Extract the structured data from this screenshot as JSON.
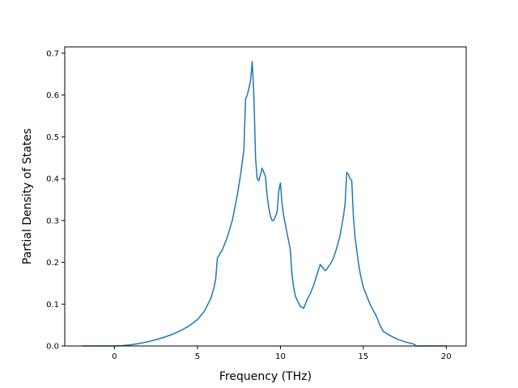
{
  "chart_data": {
    "type": "line",
    "title": "",
    "xlabel": "Frequency (THz)",
    "ylabel": "Partial Density of States",
    "xlim": [
      -3.0,
      21.2
    ],
    "ylim": [
      0.0,
      0.715
    ],
    "xticks": [
      0,
      5,
      10,
      15,
      20
    ],
    "yticks": [
      0.0,
      0.1,
      0.2,
      0.3,
      0.4,
      0.5,
      0.6,
      0.7
    ],
    "xtick_labels": [
      "0",
      "5",
      "10",
      "15",
      "20"
    ],
    "ytick_labels": [
      "0.0",
      "0.1",
      "0.2",
      "0.3",
      "0.4",
      "0.5",
      "0.6",
      "0.7"
    ],
    "grid": false,
    "legend": false,
    "series": [
      {
        "color": "#1f77b4",
        "x": [
          -1.9,
          -1.0,
          0.0,
          0.5,
          1.0,
          1.5,
          2.0,
          2.5,
          3.0,
          3.5,
          4.0,
          4.5,
          5.0,
          5.4,
          5.8,
          6.0,
          6.1,
          6.2,
          6.5,
          6.8,
          7.1,
          7.4,
          7.6,
          7.8,
          7.9,
          8.0,
          8.1,
          8.2,
          8.3,
          8.4,
          8.5,
          8.6,
          8.7,
          8.8,
          8.9,
          9.0,
          9.1,
          9.2,
          9.3,
          9.4,
          9.5,
          9.6,
          9.7,
          9.8,
          9.9,
          10.0,
          10.1,
          10.2,
          10.3,
          10.4,
          10.5,
          10.6,
          10.7,
          10.8,
          10.9,
          11.0,
          11.2,
          11.4,
          11.6,
          11.8,
          12.0,
          12.2,
          12.4,
          12.6,
          12.7,
          12.8,
          12.9,
          13.0,
          13.2,
          13.4,
          13.6,
          13.8,
          13.9,
          14.0,
          14.1,
          14.2,
          14.3,
          14.4,
          14.5,
          14.6,
          14.7,
          14.8,
          15.0,
          15.2,
          15.4,
          15.6,
          15.8,
          16.0,
          16.2,
          16.4,
          16.6,
          17.0,
          17.5,
          18.0,
          18.2,
          18.5,
          19.0,
          20.0
        ],
        "y": [
          0.0,
          0.0,
          0.0,
          0.001,
          0.003,
          0.006,
          0.01,
          0.015,
          0.021,
          0.028,
          0.037,
          0.048,
          0.063,
          0.082,
          0.113,
          0.14,
          0.16,
          0.21,
          0.23,
          0.26,
          0.3,
          0.36,
          0.41,
          0.47,
          0.59,
          0.6,
          0.615,
          0.635,
          0.68,
          0.6,
          0.45,
          0.4,
          0.395,
          0.41,
          0.425,
          0.415,
          0.405,
          0.36,
          0.33,
          0.31,
          0.3,
          0.3,
          0.31,
          0.32,
          0.37,
          0.39,
          0.34,
          0.31,
          0.29,
          0.27,
          0.25,
          0.23,
          0.17,
          0.14,
          0.12,
          0.11,
          0.095,
          0.09,
          0.11,
          0.125,
          0.145,
          0.17,
          0.195,
          0.185,
          0.18,
          0.183,
          0.19,
          0.195,
          0.21,
          0.235,
          0.265,
          0.31,
          0.34,
          0.415,
          0.41,
          0.4,
          0.395,
          0.31,
          0.26,
          0.23,
          0.2,
          0.175,
          0.14,
          0.12,
          0.1,
          0.085,
          0.07,
          0.05,
          0.035,
          0.03,
          0.025,
          0.017,
          0.01,
          0.005,
          0.0,
          0.0,
          0.0,
          0.0
        ]
      }
    ]
  }
}
